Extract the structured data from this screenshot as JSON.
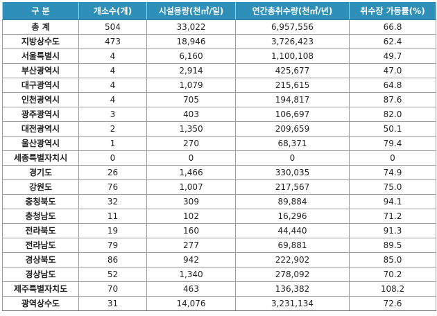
{
  "table": {
    "headers": [
      "구 분",
      "개소수(개)",
      "시설용량(천㎥/일)",
      "연간총취수량(천㎥/년)",
      "취수장 가동률(%)"
    ],
    "rows": [
      [
        "총 계",
        "504",
        "33,022",
        "6,957,556",
        "66.8"
      ],
      [
        "지방상수도",
        "473",
        "18,946",
        "3,726,423",
        "62.4"
      ],
      [
        "서울특별시",
        "4",
        "6,160",
        "1,100,108",
        "49.7"
      ],
      [
        "부산광역시",
        "4",
        "2,914",
        "425,677",
        "47.0"
      ],
      [
        "대구광역시",
        "4",
        "1,079",
        "215,615",
        "64.8"
      ],
      [
        "인천광역시",
        "4",
        "705",
        "194,817",
        "87.6"
      ],
      [
        "광주광역시",
        "3",
        "403",
        "106,697",
        "82.0"
      ],
      [
        "대전광역시",
        "2",
        "1,350",
        "209,659",
        "50.1"
      ],
      [
        "울산광역시",
        "1",
        "270",
        "68,371",
        "79.4"
      ],
      [
        "세종특별자치시",
        "0",
        "0",
        "0",
        "0"
      ],
      [
        "경기도",
        "26",
        "1,466",
        "330,035",
        "74.9"
      ],
      [
        "강원도",
        "76",
        "1,007",
        "217,567",
        "75.0"
      ],
      [
        "충청북도",
        "32",
        "309",
        "89,884",
        "94.1"
      ],
      [
        "충청남도",
        "11",
        "102",
        "16,296",
        "71.2"
      ],
      [
        "전라북도",
        "19",
        "160",
        "44,440",
        "91.3"
      ],
      [
        "전라남도",
        "79",
        "277",
        "69,881",
        "89.5"
      ],
      [
        "경상북도",
        "86",
        "942",
        "222,902",
        "85.0"
      ],
      [
        "경상남도",
        "52",
        "1,340",
        "278,092",
        "70.2"
      ],
      [
        "제주특별자치도",
        "70",
        "463",
        "136,382",
        "108.2"
      ],
      [
        "광역상수도",
        "31",
        "14,076",
        "3,231,134",
        "72.6"
      ]
    ]
  },
  "colors": {
    "header_bg": "#2e8fb8",
    "header_text": "#ffffff",
    "grid": "#9a9a9a"
  }
}
